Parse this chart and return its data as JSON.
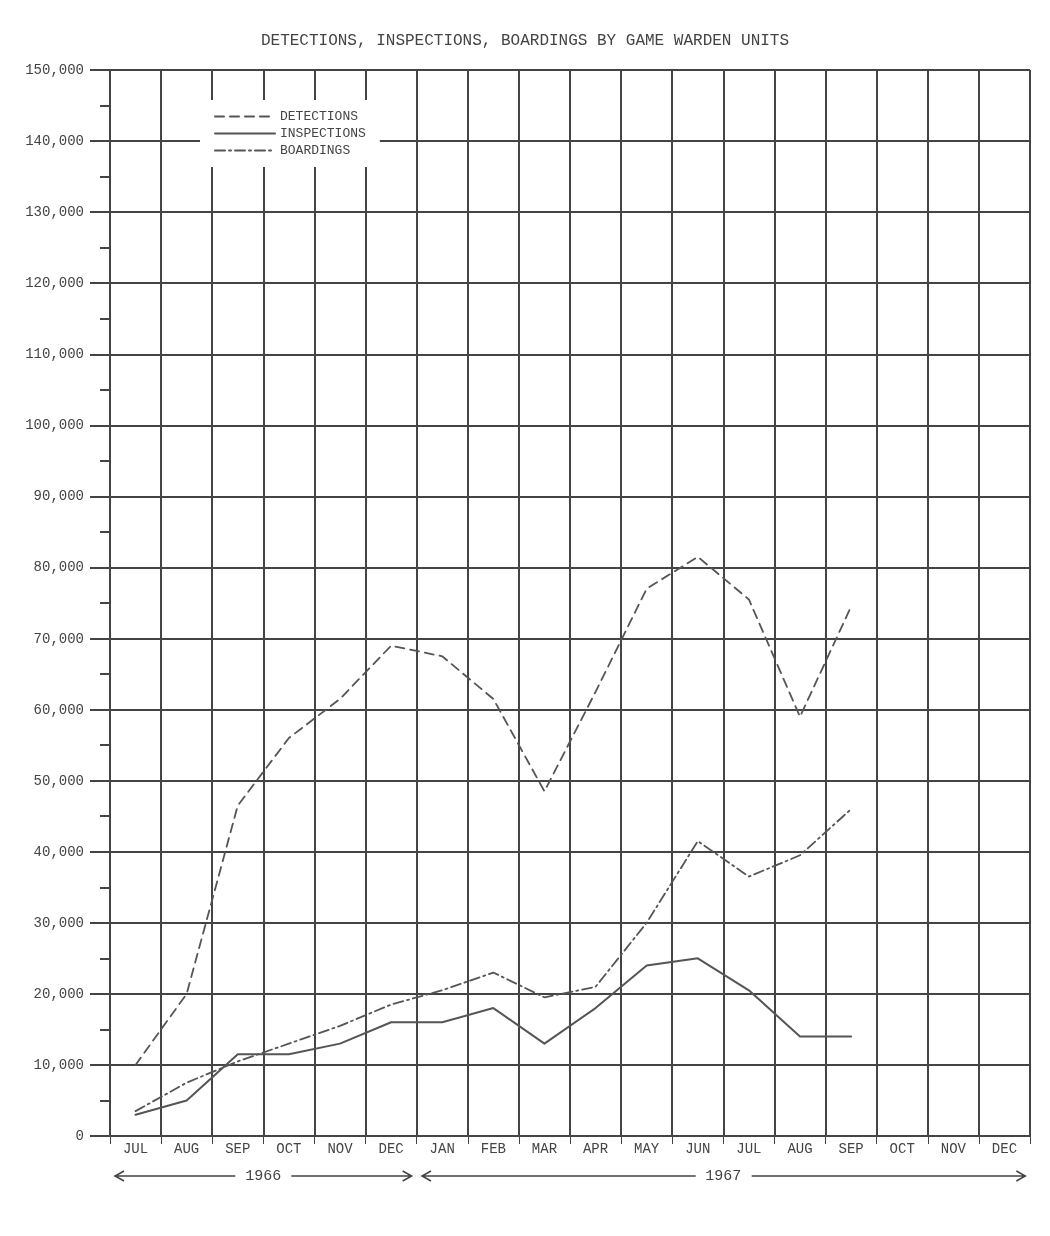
{
  "chart_data": {
    "type": "line",
    "title": "DETECTIONS, INSPECTIONS, BOARDINGS BY GAME WARDEN UNITS",
    "categories": [
      "JUL",
      "AUG",
      "SEP",
      "OCT",
      "NOV",
      "DEC",
      "JAN",
      "FEB",
      "MAR",
      "APR",
      "MAY",
      "JUN",
      "JUL",
      "AUG",
      "SEP",
      "OCT",
      "NOV",
      "DEC"
    ],
    "series": [
      {
        "name": "DETECTIONS",
        "color": "#555555",
        "line_style": "dashed",
        "values": [
          10000,
          20000,
          46500,
          56000,
          61500,
          69000,
          67500,
          61500,
          48500,
          62500,
          77000,
          81500,
          75500,
          59000,
          74500,
          null,
          null,
          null
        ]
      },
      {
        "name": "INSPECTIONS",
        "color": "#555555",
        "line_style": "solid",
        "values": [
          3000,
          5000,
          11500,
          11500,
          13000,
          16000,
          16000,
          18000,
          13000,
          18000,
          24000,
          25000,
          20500,
          14000,
          14000,
          null,
          null,
          null
        ]
      },
      {
        "name": "BOARDINGS",
        "color": "#555555",
        "line_style": "dotted",
        "values": [
          3500,
          7500,
          10500,
          13000,
          15500,
          18500,
          20500,
          23000,
          19500,
          21000,
          30000,
          41500,
          36500,
          39500,
          46000,
          null,
          null,
          null
        ]
      }
    ],
    "ylim": [
      0,
      150000
    ],
    "yticks": [
      0,
      {
        "value": 10000,
        "label": "10,000"
      },
      {
        "value": 20000,
        "label": "20,000"
      },
      {
        "value": 30000,
        "label": "30,000"
      },
      {
        "value": 40000,
        "label": "40,000"
      },
      {
        "value": 50000,
        "label": "50,000"
      },
      {
        "value": 60000,
        "label": "60,000"
      },
      {
        "value": 70000,
        "label": "70,000"
      },
      {
        "value": 80000,
        "label": "80,000"
      },
      {
        "value": 90000,
        "label": "90,000"
      },
      {
        "value": 100000,
        "label": "100,000"
      },
      {
        "value": 110000,
        "label": "110,000"
      },
      {
        "value": 120000,
        "label": "120,000"
      },
      {
        "value": 130000,
        "label": "130,000"
      },
      {
        "value": 140000,
        "label": "140,000"
      },
      {
        "value": 150000,
        "label": "150,000"
      }
    ],
    "grid": true,
    "legend": "top left",
    "marker": "none",
    "annotations": [
      "1966",
      "1967"
    ]
  }
}
